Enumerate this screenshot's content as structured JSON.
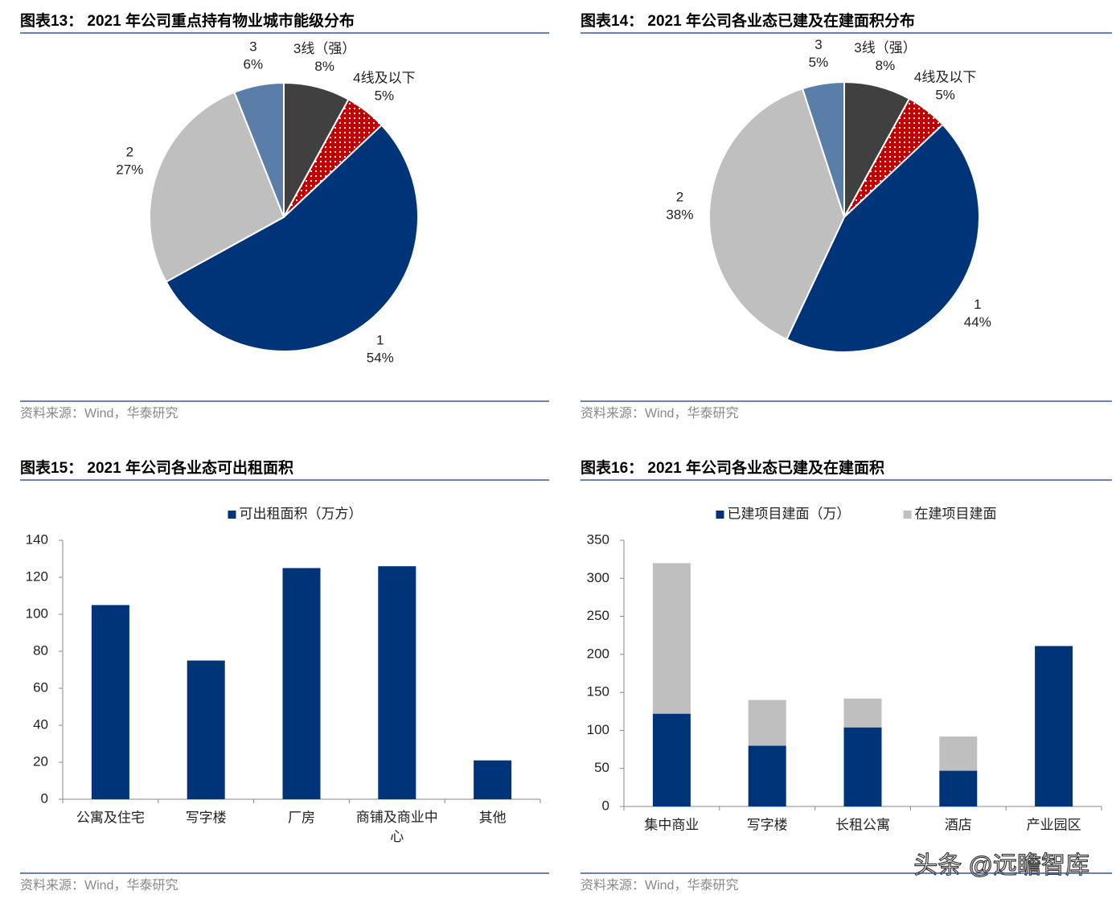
{
  "watermark": "头条 @远瞻智库",
  "chart_data": [
    {
      "type": "pie",
      "title": "图表13： 2021 年公司重点持有物业城市能级分布",
      "source": "资料来源：Wind，华泰研究",
      "categories": [
        "3线（强）",
        "4线及以下",
        "1",
        "2",
        "3"
      ],
      "values": [
        8,
        5,
        54,
        27,
        6
      ],
      "value_labels": [
        "8%",
        "5%",
        "54%",
        "27%",
        "6%"
      ],
      "colors": [
        "#404040",
        "#c00000",
        "#003478",
        "#bfbfbf",
        "#5b7ea8"
      ],
      "patterns": [
        null,
        "dots",
        null,
        null,
        null
      ]
    },
    {
      "type": "pie",
      "title": "图表14： 2021 年公司各业态已建及在建面积分布",
      "source": "资料来源：Wind，华泰研究",
      "categories": [
        "3线（强）",
        "4线及以下",
        "1",
        "2",
        "3"
      ],
      "values": [
        8,
        5,
        44,
        38,
        5
      ],
      "value_labels": [
        "8%",
        "5%",
        "44%",
        "38%",
        "5%"
      ],
      "colors": [
        "#404040",
        "#c00000",
        "#003478",
        "#bfbfbf",
        "#5b7ea8"
      ],
      "patterns": [
        null,
        "dots",
        null,
        null,
        null
      ]
    },
    {
      "type": "bar",
      "title": "图表15： 2021 年公司各业态可出租面积",
      "source": "资料来源：Wind，华泰研究",
      "categories": [
        "公寓及住宅",
        "写字楼",
        "厂房",
        "商铺及商业中心",
        "其他"
      ],
      "series": [
        {
          "name": "可出租面积（万方）",
          "color": "#003478",
          "values": [
            105,
            75,
            125,
            126,
            21
          ]
        }
      ],
      "ylim": [
        0,
        140
      ],
      "yticks": [
        0,
        20,
        40,
        60,
        80,
        100,
        120,
        140
      ],
      "grid": false
    },
    {
      "type": "stacked_bar",
      "title": "图表16： 2021 年公司各业态已建及在建面积",
      "source": "资料来源：Wind，华泰研究",
      "categories": [
        "集中商业",
        "写字楼",
        "长租公寓",
        "酒店",
        "产业园区"
      ],
      "series": [
        {
          "name": "已建项目建面（万）",
          "color": "#003478",
          "values": [
            122,
            80,
            104,
            47,
            211
          ]
        },
        {
          "name": "在建项目建面",
          "color": "#bfbfbf",
          "values": [
            198,
            60,
            38,
            45,
            null
          ]
        }
      ],
      "ylim": [
        0,
        350
      ],
      "yticks": [
        0,
        50,
        100,
        150,
        200,
        250,
        300,
        350
      ],
      "grid": false
    }
  ]
}
